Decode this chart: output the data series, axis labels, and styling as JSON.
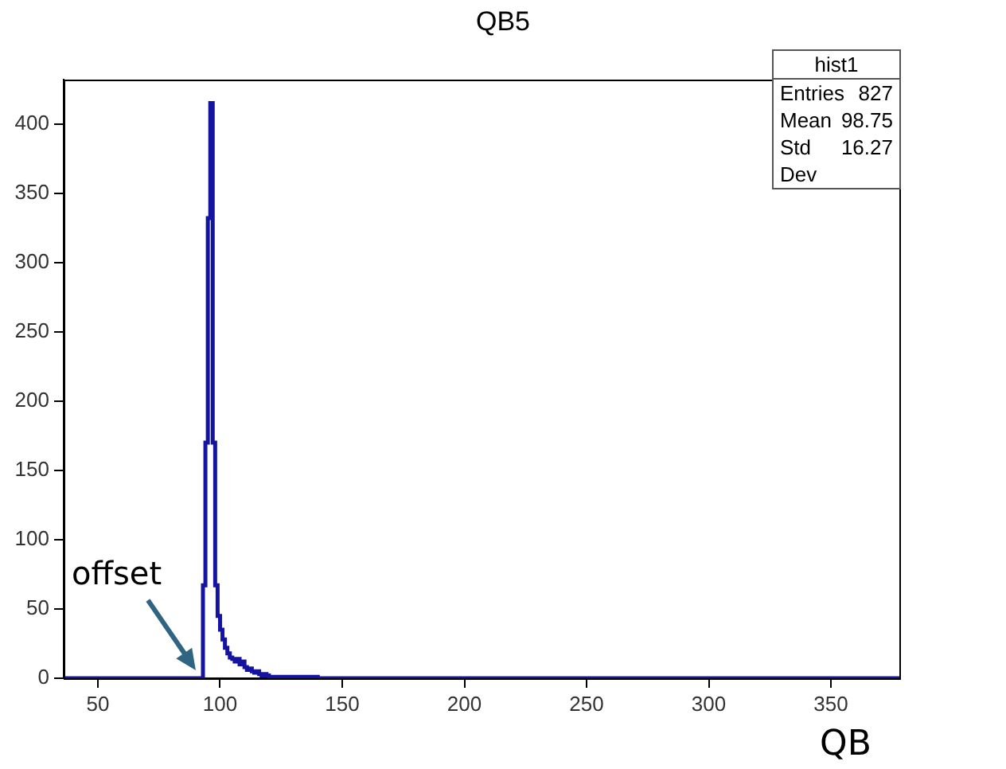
{
  "chart_data": {
    "type": "histogram",
    "title": "QB5",
    "xlabel": "QB",
    "bins": [
      36,
      93,
      94,
      95,
      96,
      97,
      98,
      99,
      100,
      101,
      102,
      103,
      104,
      105,
      106,
      107,
      108,
      109,
      110,
      111,
      112,
      113,
      114,
      115,
      116,
      117,
      118,
      119,
      120,
      125,
      130,
      140,
      150,
      378
    ],
    "values": [
      0,
      0,
      67,
      170,
      332,
      415,
      170,
      67,
      45,
      35,
      28,
      22,
      18,
      15,
      14,
      12,
      14,
      10,
      12,
      8,
      6,
      7,
      5,
      4,
      5,
      3,
      2,
      3,
      2,
      1,
      1,
      1,
      0
    ],
    "color": "#1414a0",
    "xlim": [
      36,
      378
    ],
    "xticks": [
      50,
      100,
      150,
      200,
      250,
      300,
      350
    ],
    "ylim": [
      0,
      432
    ],
    "yticks": [
      0,
      50,
      100,
      150,
      200,
      250,
      300,
      350,
      400
    ],
    "legend": false,
    "annotations": [
      {
        "text": "offset",
        "x": 92,
        "y": 0
      },
      "hist1",
      "Entries",
      "827",
      "Mean",
      "98.75",
      "Std Dev",
      "16.27"
    ]
  }
}
